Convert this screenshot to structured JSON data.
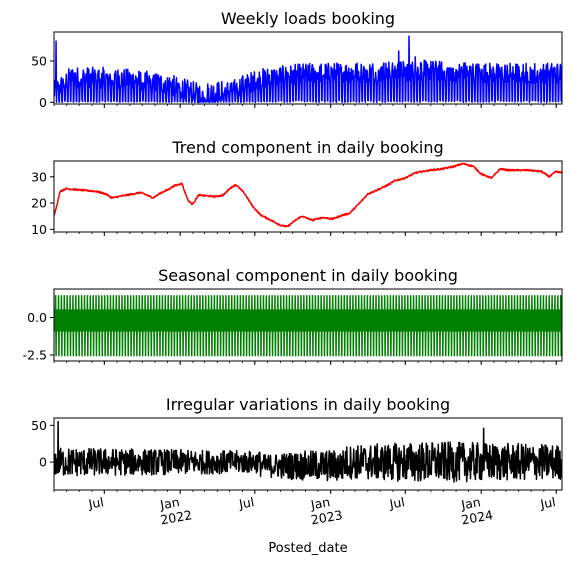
{
  "chart_data": [
    {
      "type": "line",
      "title": "Weekly loads booking",
      "color": "#0000ff",
      "ylim": [
        -2,
        85
      ],
      "yticks": [
        0,
        50
      ],
      "noise": 25,
      "baseline_key": [
        [
          0,
          10
        ],
        [
          8,
          28
        ],
        [
          30,
          27
        ],
        [
          55,
          20
        ],
        [
          70,
          8
        ],
        [
          85,
          12
        ],
        [
          100,
          26
        ],
        [
          120,
          32
        ],
        [
          150,
          34
        ],
        [
          180,
          36
        ],
        [
          210,
          33
        ]
      ],
      "spikes": [
        [
          1,
          74
        ],
        [
          167,
          62
        ],
        [
          172,
          80
        ],
        [
          175,
          55
        ]
      ]
    },
    {
      "type": "line",
      "title": "Trend component in daily booking",
      "color": "#ff0000",
      "ylim": [
        9,
        36
      ],
      "yticks": [
        10,
        20,
        30
      ],
      "series": [
        [
          0,
          15.5
        ],
        [
          1,
          18
        ],
        [
          3,
          24.5
        ],
        [
          6,
          25.5
        ],
        [
          12,
          25
        ],
        [
          20,
          24.5
        ],
        [
          25,
          23.5
        ],
        [
          28,
          22
        ],
        [
          35,
          23
        ],
        [
          42,
          24
        ],
        [
          48,
          22
        ],
        [
          52,
          24
        ],
        [
          55,
          25
        ],
        [
          58,
          26.5
        ],
        [
          62,
          27.5
        ],
        [
          63,
          25
        ],
        [
          65,
          21
        ],
        [
          67,
          19.5
        ],
        [
          70,
          23
        ],
        [
          78,
          22.5
        ],
        [
          82,
          23
        ],
        [
          85,
          25.5
        ],
        [
          88,
          27
        ],
        [
          92,
          24
        ],
        [
          96,
          19
        ],
        [
          100,
          15.5
        ],
        [
          105,
          13.5
        ],
        [
          110,
          11.5
        ],
        [
          113,
          11
        ],
        [
          117,
          13.5
        ],
        [
          120,
          15
        ],
        [
          125,
          13.5
        ],
        [
          130,
          14.5
        ],
        [
          135,
          14
        ],
        [
          140,
          15.5
        ],
        [
          143,
          16
        ],
        [
          148,
          20
        ],
        [
          152,
          23.5
        ],
        [
          158,
          25.5
        ],
        [
          162,
          27
        ],
        [
          165,
          28.5
        ],
        [
          170,
          29.5
        ],
        [
          175,
          31.5
        ],
        [
          182,
          32.5
        ],
        [
          188,
          33
        ],
        [
          194,
          34
        ],
        [
          198,
          35
        ],
        [
          203,
          34
        ],
        [
          207,
          31
        ],
        [
          212,
          29.5
        ],
        [
          216,
          33
        ],
        [
          220,
          32.5
        ],
        [
          230,
          32.5
        ],
        [
          236,
          32
        ],
        [
          240,
          30
        ],
        [
          243,
          32
        ],
        [
          246,
          31.5
        ]
      ],
      "jitter": 0.6
    },
    {
      "type": "line",
      "title": "Seasonal component in daily booking",
      "color": "#008000",
      "ylim": [
        -2.9,
        1.9
      ],
      "yticks": [
        -2.5,
        0.0
      ],
      "period_days": 7,
      "high": 1.45,
      "low": -2.55,
      "band": [
        -0.9,
        0.5
      ]
    },
    {
      "type": "line",
      "title": "Irregular variations in daily booking",
      "color": "#000000",
      "ylim": [
        -38,
        60
      ],
      "yticks": [
        0,
        50
      ],
      "amp_key": [
        [
          0,
          20
        ],
        [
          100,
          15
        ],
        [
          120,
          20
        ],
        [
          180,
          28
        ],
        [
          246,
          24
        ]
      ],
      "spikes": [
        [
          2,
          55
        ],
        [
          208,
          46
        ]
      ]
    }
  ],
  "x_axis": {
    "label": "Posted_date",
    "start": "2021-03-01",
    "end": "2024-07-15",
    "ticks": [
      {
        "date": "2021-07-01",
        "label": "Jul",
        "sub": ""
      },
      {
        "date": "2022-01-01",
        "label": "Jan",
        "sub": "2022"
      },
      {
        "date": "2022-07-01",
        "label": "Jul",
        "sub": ""
      },
      {
        "date": "2023-01-01",
        "label": "Jan",
        "sub": "2023"
      },
      {
        "date": "2023-07-01",
        "label": "Jul",
        "sub": ""
      },
      {
        "date": "2024-01-01",
        "label": "Jan",
        "sub": "2024"
      },
      {
        "date": "2024-07-01",
        "label": "Jul",
        "sub": ""
      }
    ]
  }
}
